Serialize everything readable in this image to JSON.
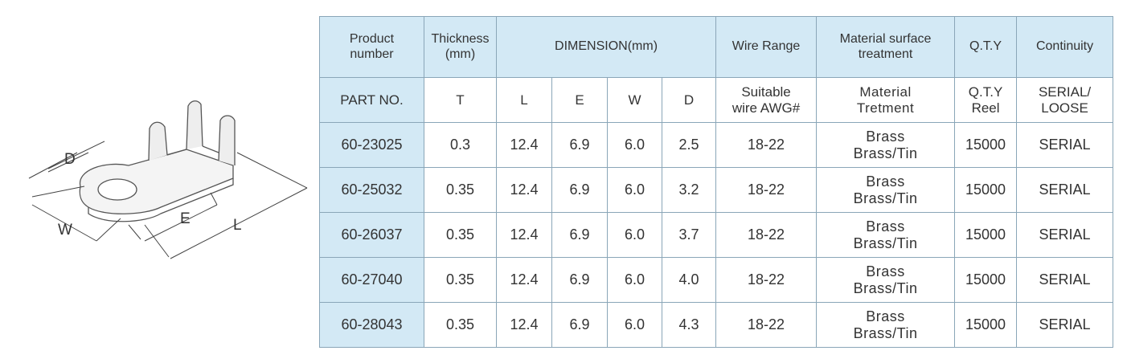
{
  "diagram": {
    "labels": {
      "d": "D",
      "w": "W",
      "e": "E",
      "l": "L"
    }
  },
  "table": {
    "header": [
      "Product\nnumber",
      "Thickness\n(mm)",
      "DIMENSION(mm)",
      "Wire Range",
      "Material surface\ntreatment",
      "Q.T.Y",
      "Continuity"
    ],
    "subheader": [
      "PART NO.",
      "T",
      "L",
      "E",
      "W",
      "D",
      "Suitable\nwire AWG#",
      "Material\nTretment",
      "Q.T.Y\nReel",
      "SERIAL/\nLOOSE"
    ],
    "rows": [
      [
        "60-23025",
        "0.3",
        "12.4",
        "6.9",
        "6.0",
        "2.5",
        "18-22",
        "Brass\nBrass/Tin",
        "15000",
        "SERIAL"
      ],
      [
        "60-25032",
        "0.35",
        "12.4",
        "6.9",
        "6.0",
        "3.2",
        "18-22",
        "Brass\nBrass/Tin",
        "15000",
        "SERIAL"
      ],
      [
        "60-26037",
        "0.35",
        "12.4",
        "6.9",
        "6.0",
        "3.7",
        "18-22",
        "Brass\nBrass/Tin",
        "15000",
        "SERIAL"
      ],
      [
        "60-27040",
        "0.35",
        "12.4",
        "6.9",
        "6.0",
        "4.0",
        "18-22",
        "Brass\nBrass/Tin",
        "15000",
        "SERIAL"
      ],
      [
        "60-28043",
        "0.35",
        "12.4",
        "6.9",
        "6.0",
        "4.3",
        "18-22",
        "Brass\nBrass/Tin",
        "15000",
        "SERIAL"
      ]
    ]
  }
}
